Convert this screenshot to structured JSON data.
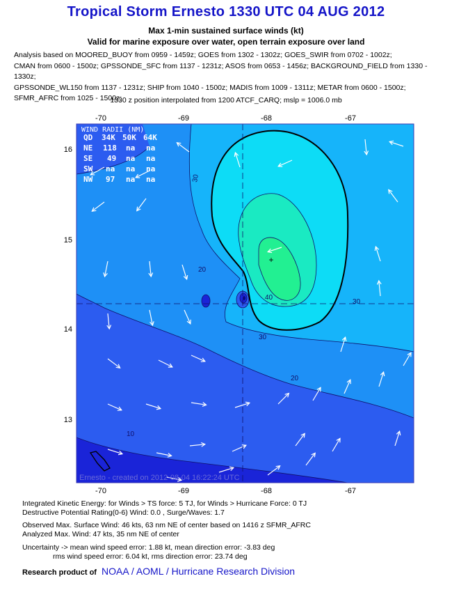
{
  "title": "Tropical Storm Ernesto 1330 UTC 04 AUG 2012",
  "subtitle1": "Max 1-min sustained surface winds (kt)",
  "subtitle2": "Valid for marine exposure over water, open terrain exposure over land",
  "analysis_lines": [
    "Analysis based on MOORED_BUOY from 0959 - 1459z; GOES from 1302 - 1302z; GOES_SWIR from 0702 - 1002z;",
    "CMAN from 0600 - 1500z; GPSSONDE_SFC from 1137 - 1231z; ASOS from 0653 - 1456z; BACKGROUND_FIELD from 1330 - 1330z;",
    "GPSSONDE_WL150 from 1137 - 1231z; SHIP from 1040 - 1500z; MADIS from 1009 - 1311z; METAR from 0600 - 1500z;",
    "SFMR_AFRC from 1025 - 1500z;"
  ],
  "position_line": "1330 z position interpolated from 1200 ATCF_CARQ; mslp = 1006.0 mb",
  "map": {
    "lon_ticks": [
      "-70",
      "-69",
      "-68",
      "-67"
    ],
    "lat_ticks": [
      "16",
      "15",
      "14",
      "13"
    ],
    "contour_labels": [
      "10",
      "20",
      "20",
      "30",
      "30",
      "30",
      "40"
    ],
    "credit": "Ernesto - created on 2012-08-04 16:22:24 UTC",
    "wind_radii": {
      "title": "WIND RADII (NM)",
      "header": [
        "QD",
        "34K",
        "50K",
        "64K"
      ],
      "rows": [
        [
          "NE",
          "118",
          "na",
          "na"
        ],
        [
          "SE",
          "49",
          "na",
          "na"
        ],
        [
          "SW",
          "na",
          "na",
          "na"
        ],
        [
          "NW",
          "97",
          "na",
          "na"
        ]
      ]
    },
    "colors": {
      "frame": "#3a3ab0",
      "band_0_10": "#1a24d8",
      "band_10_20": "#2c5cf0",
      "band_20_30": "#1e90f6",
      "band_30_34": "#16b4fa",
      "band_34_40": "#0ddcf6",
      "band_40_45": "#1aeac2",
      "band_45_plus": "#22f092",
      "arrow": "#ffffff",
      "contour": "#10106a"
    }
  },
  "ike_line": "Integrated Kinetic Energy: for Winds > TS force: 5 TJ, for Winds > Hurricane Force: 0 TJ",
  "dpr_line": "Destructive Potential Rating(0-6)  Wind: 0.0 , Surge/Waves: 1.7",
  "obs_line": "Observed Max. Surface Wind: 46 kts, 63 nm NE of center based on 1416 z SFMR_AFRC",
  "analyzed_line": "Analyzed Max. Wind: 47 kts, 35 nm  NE of center",
  "uncert_line1": "Uncertainty -> mean wind speed error: 1.88 kt, mean direction error:  -3.83 deg",
  "uncert_line2": "rms wind speed error: 6.04 kt, rms direction error: 23.74 deg",
  "footer_prefix": "Research product of",
  "footer_org": "NOAA  /  AOML  /  Hurricane Research Division"
}
